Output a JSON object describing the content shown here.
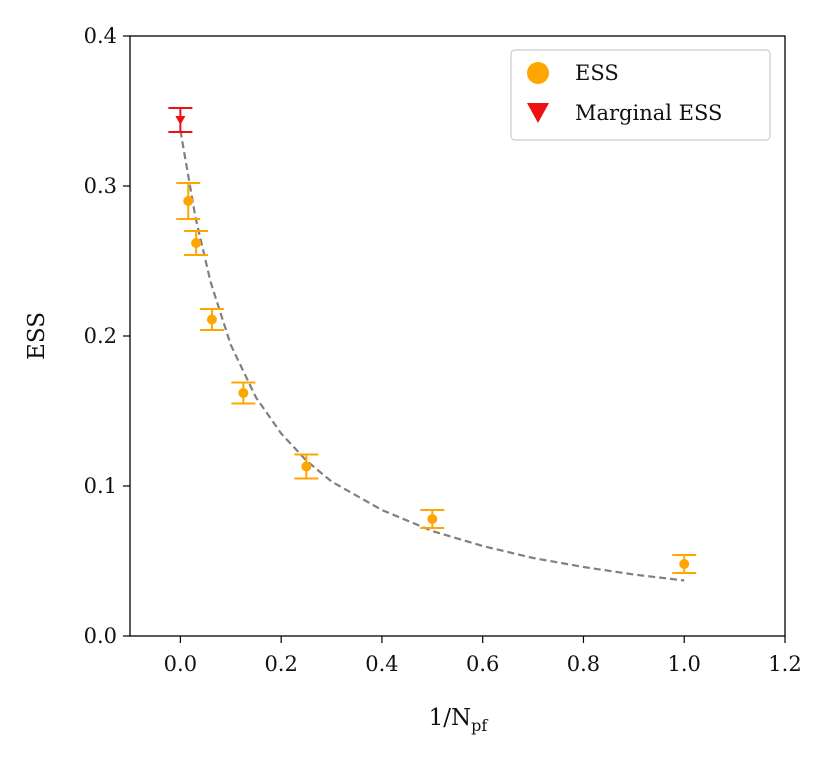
{
  "chart_data": {
    "type": "scatter",
    "title": "",
    "xlabel": "1/N",
    "xlabel_sub": "pf",
    "ylabel": "ESS",
    "xlim": [
      -0.1,
      1.2
    ],
    "ylim": [
      0.0,
      0.4
    ],
    "xticks": [
      0.0,
      0.2,
      0.4,
      0.6,
      0.8,
      1.0,
      1.2
    ],
    "xtick_labels": [
      "0.0",
      "0.2",
      "0.4",
      "0.6",
      "0.8",
      "1.0",
      "1.2"
    ],
    "yticks": [
      0.0,
      0.1,
      0.2,
      0.3,
      0.4
    ],
    "ytick_labels": [
      "0.0",
      "0.1",
      "0.2",
      "0.3",
      "0.4"
    ],
    "legend_position": "top-right",
    "series": [
      {
        "name": "ESS",
        "marker": "circle",
        "color": "#FFA500",
        "x": [
          0.015625,
          0.03125,
          0.0625,
          0.125,
          0.25,
          0.5,
          1.0
        ],
        "y": [
          0.29,
          0.262,
          0.211,
          0.162,
          0.113,
          0.078,
          0.048
        ],
        "yerr": [
          0.012,
          0.008,
          0.007,
          0.007,
          0.008,
          0.006,
          0.006
        ]
      },
      {
        "name": "Marginal ESS",
        "marker": "triangle-down",
        "color": "#EE1111",
        "x": [
          0.0
        ],
        "y": [
          0.344
        ],
        "yerr": [
          0.008
        ]
      }
    ],
    "fit": {
      "name": "fit",
      "style": "dashed",
      "color": "#808080",
      "x": [
        0.0,
        0.03,
        0.06,
        0.1,
        0.15,
        0.2,
        0.25,
        0.3,
        0.4,
        0.5,
        0.6,
        0.7,
        0.8,
        0.9,
        1.0
      ],
      "y": [
        0.337,
        0.279,
        0.236,
        0.194,
        0.159,
        0.135,
        0.117,
        0.103,
        0.084,
        0.07,
        0.06,
        0.052,
        0.046,
        0.041,
        0.037
      ]
    }
  }
}
